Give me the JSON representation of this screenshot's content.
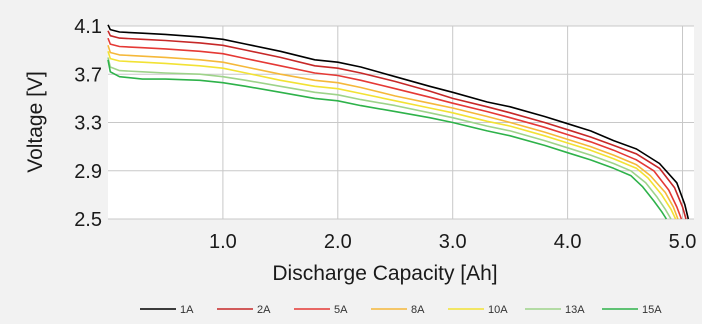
{
  "chart_data": {
    "type": "line",
    "title": "",
    "xlabel": "Discharge Capacity [Ah]",
    "ylabel": "Voltage [V]",
    "xlim": [
      0,
      5.1
    ],
    "ylim": [
      2.5,
      4.1
    ],
    "x_ticks": [
      1.0,
      2.0,
      3.0,
      4.0,
      5.0
    ],
    "x_tick_labels": [
      "1.0",
      "2.0",
      "3.0",
      "4.0",
      "5.0"
    ],
    "y_ticks": [
      2.5,
      2.9,
      3.3,
      3.7,
      4.1
    ],
    "y_tick_labels": [
      "2.5",
      "2.9",
      "3.3",
      "3.7",
      "4.1"
    ],
    "grid": true,
    "legend_position": "bottom",
    "background_color": "#f2f2f2",
    "plot_background_color": "#ffffff",
    "series": [
      {
        "name": "1A",
        "color": "#000000",
        "x": [
          0.0,
          0.02,
          0.1,
          0.3,
          0.5,
          0.8,
          1.0,
          1.2,
          1.5,
          1.8,
          2.0,
          2.2,
          2.5,
          2.8,
          3.0,
          3.3,
          3.5,
          3.8,
          4.0,
          4.2,
          4.4,
          4.6,
          4.8,
          4.95,
          5.02,
          5.05
        ],
        "y": [
          4.11,
          4.07,
          4.05,
          4.04,
          4.03,
          4.01,
          3.99,
          3.95,
          3.89,
          3.82,
          3.8,
          3.76,
          3.68,
          3.6,
          3.55,
          3.47,
          3.43,
          3.35,
          3.29,
          3.23,
          3.15,
          3.08,
          2.96,
          2.8,
          2.62,
          2.5
        ]
      },
      {
        "name": "2A",
        "color": "#c62828",
        "x": [
          0.0,
          0.02,
          0.1,
          0.3,
          0.5,
          0.8,
          1.0,
          1.2,
          1.5,
          1.8,
          2.0,
          2.2,
          2.5,
          2.8,
          3.0,
          3.3,
          3.5,
          3.8,
          4.0,
          4.2,
          4.4,
          4.6,
          4.8,
          4.93,
          5.0,
          5.03
        ],
        "y": [
          4.06,
          4.02,
          4.0,
          3.99,
          3.98,
          3.96,
          3.94,
          3.9,
          3.84,
          3.77,
          3.75,
          3.71,
          3.64,
          3.56,
          3.5,
          3.43,
          3.38,
          3.3,
          3.24,
          3.18,
          3.11,
          3.04,
          2.92,
          2.76,
          2.6,
          2.5
        ]
      },
      {
        "name": "5A",
        "color": "#e53935",
        "x": [
          0.0,
          0.02,
          0.1,
          0.3,
          0.5,
          0.8,
          1.0,
          1.2,
          1.5,
          1.8,
          2.0,
          2.2,
          2.5,
          2.8,
          3.0,
          3.3,
          3.5,
          3.8,
          4.0,
          4.2,
          4.4,
          4.6,
          4.75,
          4.88,
          4.95,
          4.99
        ],
        "y": [
          4.0,
          3.95,
          3.93,
          3.92,
          3.91,
          3.89,
          3.87,
          3.83,
          3.77,
          3.71,
          3.69,
          3.65,
          3.58,
          3.51,
          3.46,
          3.39,
          3.34,
          3.26,
          3.2,
          3.14,
          3.07,
          2.99,
          2.9,
          2.74,
          2.6,
          2.5
        ]
      },
      {
        "name": "8A",
        "color": "#f5b83a",
        "x": [
          0.0,
          0.02,
          0.1,
          0.3,
          0.5,
          0.8,
          1.0,
          1.2,
          1.5,
          1.8,
          2.0,
          2.2,
          2.5,
          2.8,
          3.0,
          3.3,
          3.5,
          3.8,
          4.0,
          4.2,
          4.4,
          4.6,
          4.72,
          4.85,
          4.92,
          4.96
        ],
        "y": [
          3.94,
          3.88,
          3.86,
          3.85,
          3.84,
          3.82,
          3.8,
          3.76,
          3.7,
          3.65,
          3.63,
          3.59,
          3.52,
          3.46,
          3.42,
          3.35,
          3.3,
          3.22,
          3.16,
          3.1,
          3.03,
          2.95,
          2.86,
          2.72,
          2.6,
          2.5
        ]
      },
      {
        "name": "10A",
        "color": "#f2e234",
        "x": [
          0.0,
          0.02,
          0.1,
          0.3,
          0.5,
          0.8,
          1.0,
          1.2,
          1.5,
          1.8,
          2.0,
          2.2,
          2.5,
          2.8,
          3.0,
          3.3,
          3.5,
          3.8,
          4.0,
          4.2,
          4.4,
          4.6,
          4.7,
          4.82,
          4.9,
          4.94
        ],
        "y": [
          3.89,
          3.83,
          3.81,
          3.8,
          3.79,
          3.77,
          3.75,
          3.71,
          3.65,
          3.6,
          3.58,
          3.54,
          3.48,
          3.42,
          3.38,
          3.31,
          3.27,
          3.19,
          3.13,
          3.07,
          3.0,
          2.92,
          2.84,
          2.7,
          2.58,
          2.5
        ]
      },
      {
        "name": "13A",
        "color": "#9ed38a",
        "x": [
          0.0,
          0.02,
          0.1,
          0.3,
          0.5,
          0.8,
          1.0,
          1.2,
          1.5,
          1.8,
          2.0,
          2.2,
          2.5,
          2.8,
          3.0,
          3.3,
          3.5,
          3.8,
          4.0,
          4.2,
          4.4,
          4.55,
          4.68,
          4.78,
          4.85,
          4.9
        ],
        "y": [
          3.84,
          3.76,
          3.73,
          3.72,
          3.71,
          3.7,
          3.68,
          3.65,
          3.6,
          3.55,
          3.53,
          3.49,
          3.44,
          3.38,
          3.34,
          3.27,
          3.23,
          3.15,
          3.09,
          3.03,
          2.96,
          2.9,
          2.8,
          2.68,
          2.58,
          2.5
        ]
      },
      {
        "name": "15A",
        "color": "#2eb24a",
        "x": [
          0.0,
          0.02,
          0.1,
          0.3,
          0.5,
          0.8,
          1.0,
          1.2,
          1.5,
          1.8,
          2.0,
          2.2,
          2.5,
          2.8,
          3.0,
          3.3,
          3.5,
          3.8,
          4.0,
          4.2,
          4.4,
          4.55,
          4.65,
          4.75,
          4.82,
          4.86
        ],
        "y": [
          3.82,
          3.72,
          3.68,
          3.66,
          3.66,
          3.65,
          3.63,
          3.6,
          3.55,
          3.5,
          3.48,
          3.44,
          3.39,
          3.34,
          3.3,
          3.23,
          3.19,
          3.11,
          3.05,
          2.99,
          2.92,
          2.86,
          2.77,
          2.65,
          2.56,
          2.5
        ]
      }
    ]
  }
}
